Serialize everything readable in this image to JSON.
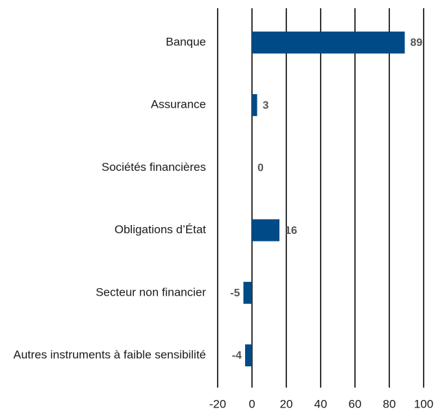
{
  "chart_data": {
    "type": "bar",
    "orientation": "horizontal",
    "categories": [
      "Banque",
      "Assurance",
      "Sociétés financières",
      "Obligations d’État",
      "Secteur non financier",
      "Autres instruments à faible sensibilité"
    ],
    "values": [
      89,
      3,
      0,
      16,
      -5,
      -4
    ],
    "data_labels": [
      "89",
      "3",
      "0",
      "16",
      "-5",
      "-4"
    ],
    "xlim": [
      -20,
      100
    ],
    "xticks": [
      -20,
      0,
      20,
      40,
      60,
      80,
      100
    ],
    "xtick_labels": [
      "-20",
      "0",
      "20",
      "40",
      "60",
      "80",
      "100"
    ],
    "grid": "vertical",
    "legend": "none",
    "bar_color": "#004b87"
  }
}
